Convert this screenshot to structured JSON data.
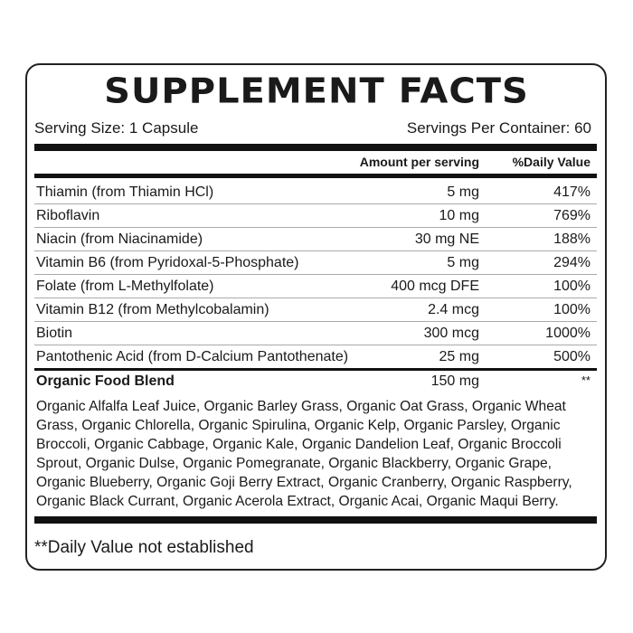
{
  "title": "SUPPLEMENT FACTS",
  "serving_size": "Serving Size: 1 Capsule",
  "servings_per_container": "Servings Per Container: 60",
  "headers": {
    "amount": "Amount per serving",
    "dv": "%Daily Value"
  },
  "rows": [
    {
      "name": "Thiamin (from Thiamin HCl)",
      "amount": "5 mg",
      "dv": "417%"
    },
    {
      "name": "Riboflavin",
      "amount": "10 mg",
      "dv": "769%"
    },
    {
      "name": "Niacin (from Niacinamide)",
      "amount": "30 mg NE",
      "dv": "188%"
    },
    {
      "name": "Vitamin B6 (from Pyridoxal-5-Phosphate)",
      "amount": "5 mg",
      "dv": "294%"
    },
    {
      "name": "Folate (from L-Methylfolate)",
      "amount": "400 mcg DFE",
      "dv": "100%"
    },
    {
      "name": "Vitamin B12 (from Methylcobalamin)",
      "amount": "2.4 mcg",
      "dv": "100%"
    },
    {
      "name": "Biotin",
      "amount": "300 mcg",
      "dv": "1000%"
    },
    {
      "name": "Pantothenic Acid (from D-Calcium Pantothenate)",
      "amount": "25 mg",
      "dv": "500%"
    }
  ],
  "blend": {
    "name": "Organic Food Blend",
    "amount": "150 mg",
    "dv": "**",
    "ingredients_lines": [
      "Organic Alfalfa Leaf Juice, Organic Barley Grass, Organic Oat Grass, Organic Wheat",
      "Grass, Organic Chlorella, Organic Spirulina, Organic Kelp, Organic Parsley, Organic",
      "Broccoli, Organic Cabbage, Organic Kale, Organic Dandelion Leaf, Organic Broccoli",
      "Sprout, Organic Dulse, Organic Pomegranate, Organic Blackberry, Organic Grape,",
      "Organic Blueberry, Organic Goji Berry Extract, Organic Cranberry, Organic Raspberry,",
      "Organic Black Currant, Organic Acerola Extract, Organic Acai, Organic Maqui Berry."
    ]
  },
  "footnote": "**Daily Value not established"
}
